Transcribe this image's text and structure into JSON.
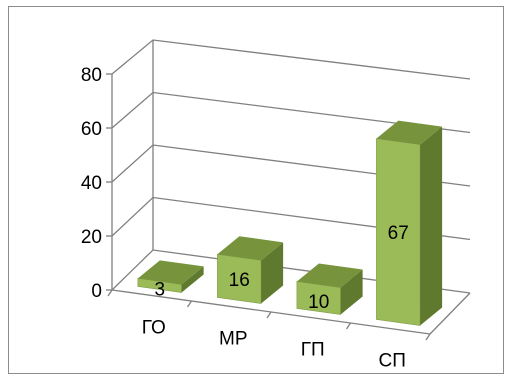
{
  "chart_data": {
    "type": "bar",
    "style": "3d-column",
    "categories": [
      "ГО",
      "МР",
      "ГП",
      "СП"
    ],
    "values": [
      3,
      16,
      10,
      67
    ],
    "data_labels": [
      "3",
      "16",
      "10",
      "67"
    ],
    "yticks": [
      "0",
      "20",
      "40",
      "60",
      "80"
    ],
    "ylim": [
      0,
      80
    ],
    "grid": true,
    "legend": "none",
    "title": "",
    "xlabel": "",
    "ylabel": "",
    "colors": {
      "front": "#9bbb59",
      "top": "#77933c",
      "side": "#5f7a2e",
      "grid": "#808080"
    }
  }
}
